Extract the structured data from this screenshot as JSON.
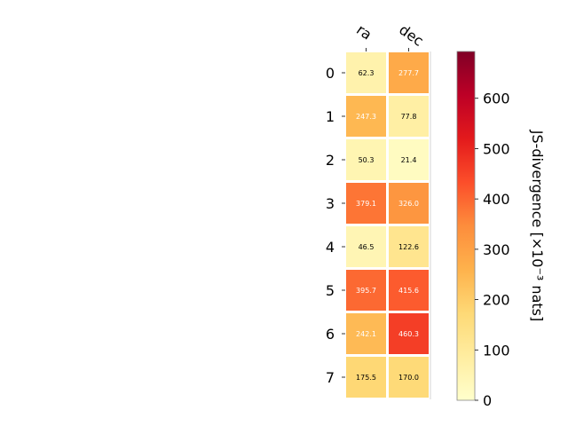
{
  "chart_data": {
    "type": "heatmap",
    "columns": [
      "ra",
      "dec"
    ],
    "rows": [
      "0",
      "1",
      "2",
      "3",
      "4",
      "5",
      "6",
      "7"
    ],
    "values": [
      [
        62.3,
        277.7
      ],
      [
        247.3,
        77.8
      ],
      [
        50.3,
        21.4
      ],
      [
        379.1,
        326.0
      ],
      [
        46.5,
        122.6
      ],
      [
        395.7,
        415.6
      ],
      [
        242.1,
        460.3
      ],
      [
        175.5,
        170.0
      ]
    ],
    "labels": [
      [
        "62.3",
        "277.7"
      ],
      [
        "247.3",
        "77.8"
      ],
      [
        "50.3",
        "21.4"
      ],
      [
        "379.1",
        "326.0"
      ],
      [
        "46.5",
        "122.6"
      ],
      [
        "395.7",
        "415.6"
      ],
      [
        "242.1",
        "460.3"
      ],
      [
        "175.5",
        "170.0"
      ]
    ],
    "colorbar": {
      "label": "JS-divergence [×10⁻³ nats]",
      "range": [
        0,
        693
      ],
      "ticks": [
        0,
        100,
        200,
        300,
        400,
        500,
        600
      ],
      "tick_labels": [
        "0",
        "100",
        "200",
        "300",
        "400",
        "500",
        "600"
      ],
      "colormap": "YlOrRd",
      "colors": [
        "#ffffcc",
        "#ffeda0",
        "#fed976",
        "#feb24c",
        "#fd8d3c",
        "#fc4e2a",
        "#e31a1c",
        "#bd0026",
        "#800026"
      ]
    },
    "label_text_colors": {
      "dark": "#000000",
      "light": "#ffffff"
    },
    "grid": false
  }
}
